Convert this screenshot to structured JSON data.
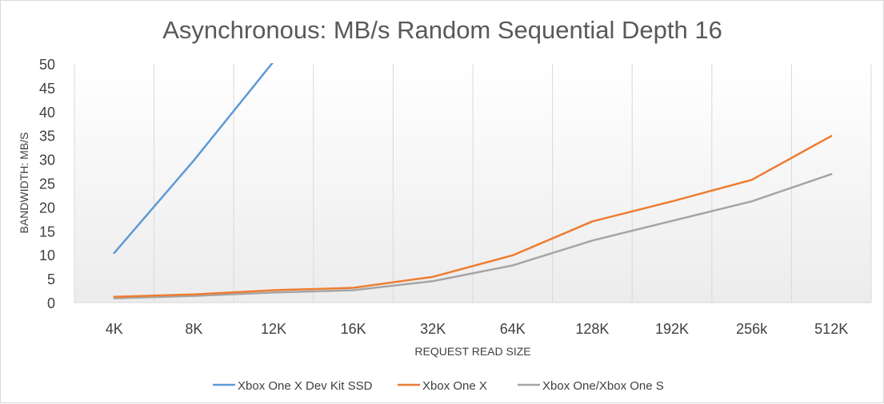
{
  "chart_data": {
    "type": "line",
    "title": "Asynchronous: MB/s Random Sequential Depth 16",
    "xlabel": "REQUEST READ SIZE",
    "ylabel": "BANDWIDTH: MB/S",
    "categories": [
      "4K",
      "8K",
      "12K",
      "16K",
      "32K",
      "64K",
      "128K",
      "192K",
      "256k",
      "512K"
    ],
    "ylim": [
      0,
      50
    ],
    "yticks": [
      0,
      5,
      10,
      15,
      20,
      25,
      30,
      35,
      40,
      45,
      50
    ],
    "grid": "vertical",
    "legend_position": "bottom",
    "series": [
      {
        "name": "Xbox One X Dev Kit SSD",
        "color": "#5b9bd5",
        "values": [
          10.4,
          29.8,
          50.5,
          null,
          null,
          null,
          null,
          null,
          null,
          null
        ]
      },
      {
        "name": "Xbox One X",
        "color": "#ed7d31",
        "values": [
          1.2,
          1.7,
          2.6,
          3.1,
          5.4,
          9.9,
          17.0,
          21.2,
          25.7,
          34.9
        ]
      },
      {
        "name": "Xbox One/Xbox One S",
        "color": "#a5a5a5",
        "values": [
          0.9,
          1.4,
          2.1,
          2.6,
          4.5,
          7.8,
          13.0,
          17.1,
          21.2,
          26.9
        ]
      }
    ]
  }
}
